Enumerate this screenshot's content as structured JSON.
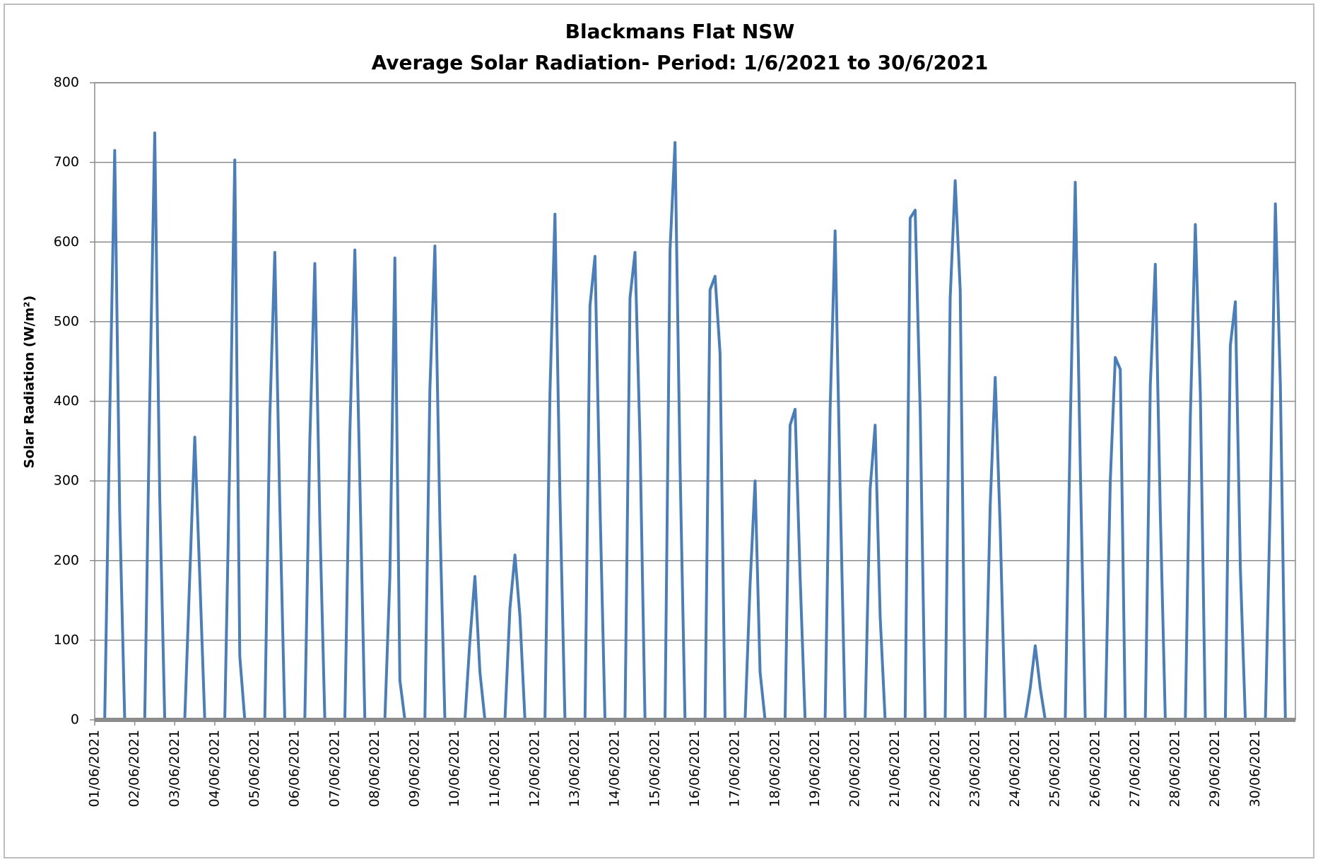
{
  "chart_data": {
    "type": "line",
    "title": "Blackmans Flat NSW",
    "subtitle": "Average Solar Radiation- Period: 1/6/2021 to 30/6/2021",
    "y_label": "Solar Radiation (W/m²)",
    "color": "#4a7ebb",
    "grid": true,
    "ylim": [
      0,
      800
    ],
    "yticks": [
      0,
      100,
      200,
      300,
      400,
      500,
      600,
      700,
      800
    ],
    "categories": [
      "01/06/2021",
      null,
      null,
      null,
      null,
      null,
      null,
      null,
      "02/06/2021",
      null,
      null,
      null,
      null,
      null,
      null,
      null,
      "03/06/2021",
      null,
      null,
      null,
      null,
      null,
      null,
      null,
      "04/06/2021",
      null,
      null,
      null,
      null,
      null,
      null,
      null,
      "05/06/2021",
      null,
      null,
      null,
      null,
      null,
      null,
      null,
      "06/06/2021",
      null,
      null,
      null,
      null,
      null,
      null,
      null,
      "07/06/2021",
      null,
      null,
      null,
      null,
      null,
      null,
      null,
      "08/06/2021",
      null,
      null,
      null,
      null,
      null,
      null,
      null,
      "09/06/2021",
      null,
      null,
      null,
      null,
      null,
      null,
      null,
      "10/06/2021",
      null,
      null,
      null,
      null,
      null,
      null,
      null,
      "11/06/2021",
      null,
      null,
      null,
      null,
      null,
      null,
      null,
      "12/06/2021",
      null,
      null,
      null,
      null,
      null,
      null,
      null,
      "13/06/2021",
      null,
      null,
      null,
      null,
      null,
      null,
      null,
      "14/06/2021",
      null,
      null,
      null,
      null,
      null,
      null,
      null,
      "15/06/2021",
      null,
      null,
      null,
      null,
      null,
      null,
      null,
      "16/06/2021",
      null,
      null,
      null,
      null,
      null,
      null,
      null,
      "17/06/2021",
      null,
      null,
      null,
      null,
      null,
      null,
      null,
      "18/06/2021",
      null,
      null,
      null,
      null,
      null,
      null,
      null,
      "19/06/2021",
      null,
      null,
      null,
      null,
      null,
      null,
      null,
      "20/06/2021",
      null,
      null,
      null,
      null,
      null,
      null,
      null,
      "21/06/2021",
      null,
      null,
      null,
      null,
      null,
      null,
      null,
      "22/06/2021",
      null,
      null,
      null,
      null,
      null,
      null,
      null,
      "23/06/2021",
      null,
      null,
      null,
      null,
      null,
      null,
      null,
      "24/06/2021",
      null,
      null,
      null,
      null,
      null,
      null,
      null,
      "25/06/2021",
      null,
      null,
      null,
      null,
      null,
      null,
      null,
      "26/06/2021",
      null,
      null,
      null,
      null,
      null,
      null,
      null,
      "27/06/2021",
      null,
      null,
      null,
      null,
      null,
      null,
      null,
      "28/06/2021",
      null,
      null,
      null,
      null,
      null,
      null,
      null,
      "29/06/2021",
      null,
      null,
      null,
      null,
      null,
      null,
      null,
      "30/06/2021",
      null,
      null,
      null,
      null,
      null,
      null,
      null
    ],
    "values": [
      0,
      0,
      0,
      380,
      715,
      260,
      0,
      0,
      0,
      0,
      0,
      400,
      737,
      280,
      0,
      0,
      0,
      0,
      0,
      180,
      355,
      180,
      0,
      0,
      0,
      0,
      0,
      330,
      703,
      80,
      0,
      0,
      0,
      0,
      0,
      380,
      587,
      270,
      0,
      0,
      0,
      0,
      0,
      350,
      573,
      250,
      0,
      0,
      0,
      0,
      0,
      360,
      590,
      300,
      0,
      0,
      0,
      0,
      0,
      180,
      580,
      50,
      0,
      0,
      0,
      0,
      0,
      415,
      595,
      250,
      0,
      0,
      0,
      0,
      0,
      100,
      180,
      60,
      0,
      0,
      0,
      0,
      0,
      140,
      207,
      130,
      0,
      0,
      0,
      0,
      0,
      410,
      635,
      280,
      0,
      0,
      0,
      0,
      0,
      520,
      582,
      270,
      0,
      0,
      0,
      0,
      0,
      530,
      587,
      350,
      0,
      0,
      0,
      0,
      0,
      590,
      725,
      320,
      0,
      0,
      0,
      0,
      0,
      540,
      557,
      460,
      0,
      0,
      0,
      0,
      0,
      170,
      300,
      60,
      0,
      0,
      0,
      0,
      0,
      370,
      390,
      180,
      0,
      0,
      0,
      0,
      0,
      390,
      614,
      290,
      0,
      0,
      0,
      0,
      0,
      290,
      370,
      130,
      0,
      0,
      0,
      0,
      0,
      630,
      640,
      390,
      0,
      0,
      0,
      0,
      0,
      530,
      677,
      540,
      0,
      0,
      0,
      0,
      0,
      270,
      430,
      240,
      0,
      0,
      0,
      0,
      0,
      40,
      93,
      40,
      0,
      0,
      0,
      0,
      0,
      370,
      675,
      320,
      0,
      0,
      0,
      0,
      0,
      300,
      455,
      440,
      0,
      0,
      0,
      0,
      0,
      420,
      572,
      260,
      0,
      0,
      0,
      0,
      0,
      380,
      622,
      410,
      0,
      0,
      0,
      0,
      0,
      470,
      525,
      190,
      0,
      0,
      0,
      0,
      0,
      280,
      648,
      420,
      0,
      0
    ]
  }
}
